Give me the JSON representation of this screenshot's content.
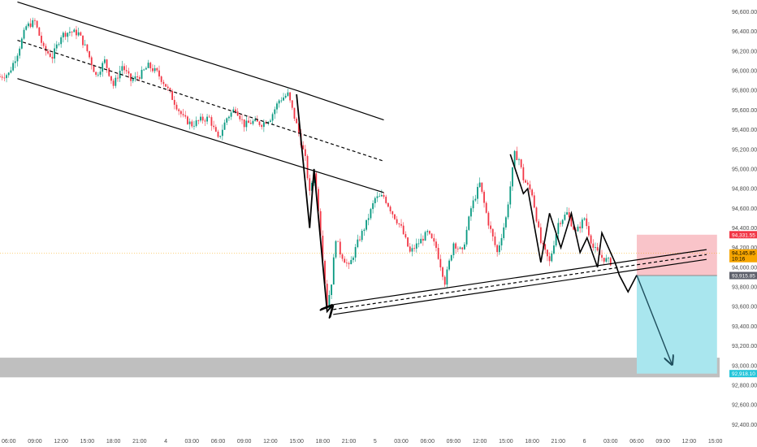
{
  "chart_data": {
    "type": "candlestick",
    "title": "",
    "xlabel": "",
    "ylabel": "",
    "grid": false,
    "ylim": [
      92320,
      96720
    ],
    "xlim_hours": [
      -1,
      81.5
    ],
    "y_ticks": [
      {
        "value": 96600,
        "label": "96,600.00"
      },
      {
        "value": 96400,
        "label": "96,400.00"
      },
      {
        "value": 96200,
        "label": "96,200.00"
      },
      {
        "value": 96000,
        "label": "96,000.00"
      },
      {
        "value": 95800,
        "label": "95,800.00"
      },
      {
        "value": 95600,
        "label": "95,600.00"
      },
      {
        "value": 95400,
        "label": "95,400.00"
      },
      {
        "value": 95200,
        "label": "95,200.00"
      },
      {
        "value": 95000,
        "label": "95,000.00"
      },
      {
        "value": 94800,
        "label": "94,800.00"
      },
      {
        "value": 94600,
        "label": "94,600.00"
      },
      {
        "value": 94400,
        "label": "94,400.00"
      },
      {
        "value": 94200,
        "label": "94,200.00"
      },
      {
        "value": 94000,
        "label": "94,000.00"
      },
      {
        "value": 93800,
        "label": "93,800.00"
      },
      {
        "value": 93600,
        "label": "93,600.00"
      },
      {
        "value": 93400,
        "label": "93,400.00"
      },
      {
        "value": 93200,
        "label": "93,200.00"
      },
      {
        "value": 93000,
        "label": "93,000.00"
      },
      {
        "value": 92800,
        "label": "92,800.00"
      },
      {
        "value": 92600,
        "label": "92,600.00"
      },
      {
        "value": 92400,
        "label": "92,400.00"
      }
    ],
    "x_ticks": [
      {
        "h": 0,
        "label": "06:00"
      },
      {
        "h": 3,
        "label": "09:00"
      },
      {
        "h": 6,
        "label": "12:00"
      },
      {
        "h": 9,
        "label": "15:00"
      },
      {
        "h": 12,
        "label": "18:00"
      },
      {
        "h": 15,
        "label": "21:00"
      },
      {
        "h": 18,
        "label": "4"
      },
      {
        "h": 21,
        "label": "03:00"
      },
      {
        "h": 24,
        "label": "06:00"
      },
      {
        "h": 27,
        "label": "09:00"
      },
      {
        "h": 30,
        "label": "12:00"
      },
      {
        "h": 33,
        "label": "15:00"
      },
      {
        "h": 36,
        "label": "18:00"
      },
      {
        "h": 39,
        "label": "21:00"
      },
      {
        "h": 42,
        "label": "5"
      },
      {
        "h": 45,
        "label": "03:00"
      },
      {
        "h": 48,
        "label": "06:00"
      },
      {
        "h": 51,
        "label": "09:00"
      },
      {
        "h": 54,
        "label": "12:00"
      },
      {
        "h": 57,
        "label": "15:00"
      },
      {
        "h": 60,
        "label": "18:00"
      },
      {
        "h": 63,
        "label": "21:00"
      },
      {
        "h": 66,
        "label": "6"
      },
      {
        "h": 69,
        "label": "03:00"
      },
      {
        "h": 72,
        "label": "06:00"
      },
      {
        "h": 75,
        "label": "09:00"
      },
      {
        "h": 78,
        "label": "12:00"
      },
      {
        "h": 81,
        "label": "15:00"
      }
    ],
    "price_path": [
      [
        -1,
        95940
      ],
      [
        0,
        95970
      ],
      [
        1,
        96180
      ],
      [
        2,
        96450
      ],
      [
        3,
        96500
      ],
      [
        4,
        96220
      ],
      [
        5,
        96140
      ],
      [
        6,
        96360
      ],
      [
        7,
        96400
      ],
      [
        8,
        96380
      ],
      [
        9,
        96200
      ],
      [
        10,
        95950
      ],
      [
        11,
        96100
      ],
      [
        12,
        95850
      ],
      [
        13,
        96050
      ],
      [
        14,
        95900
      ],
      [
        15,
        95950
      ],
      [
        16,
        96050
      ],
      [
        17,
        95980
      ],
      [
        18,
        95850
      ],
      [
        19,
        95680
      ],
      [
        20,
        95520
      ],
      [
        21,
        95450
      ],
      [
        22,
        95500
      ],
      [
        23,
        95520
      ],
      [
        24,
        95300
      ],
      [
        25,
        95520
      ],
      [
        26,
        95620
      ],
      [
        27,
        95450
      ],
      [
        28,
        95480
      ],
      [
        29,
        95460
      ],
      [
        30,
        95520
      ],
      [
        31,
        95700
      ],
      [
        32,
        95760
      ],
      [
        33,
        95450
      ],
      [
        34,
        95100
      ],
      [
        34.5,
        94750
      ],
      [
        35,
        94980
      ],
      [
        35.5,
        94600
      ],
      [
        36,
        94100
      ],
      [
        36.5,
        93600
      ],
      [
        37,
        93850
      ],
      [
        37.5,
        94300
      ],
      [
        38,
        94150
      ],
      [
        39,
        94000
      ],
      [
        40,
        94250
      ],
      [
        41,
        94450
      ],
      [
        42,
        94700
      ],
      [
        43,
        94720
      ],
      [
        44,
        94550
      ],
      [
        45,
        94400
      ],
      [
        46,
        94150
      ],
      [
        47,
        94250
      ],
      [
        48,
        94350
      ],
      [
        49,
        94200
      ],
      [
        50,
        93850
      ],
      [
        51,
        94250
      ],
      [
        52,
        94150
      ],
      [
        53,
        94600
      ],
      [
        54,
        94850
      ],
      [
        55,
        94450
      ],
      [
        56,
        94150
      ],
      [
        57,
        94500
      ],
      [
        58,
        95150
      ],
      [
        58.5,
        95100
      ],
      [
        59,
        94900
      ],
      [
        60,
        94750
      ],
      [
        61,
        94250
      ],
      [
        62,
        94050
      ],
      [
        63,
        94450
      ],
      [
        64,
        94550
      ],
      [
        65,
        94350
      ],
      [
        66,
        94500
      ],
      [
        67,
        94200
      ],
      [
        68,
        94100
      ],
      [
        69,
        94050
      ]
    ],
    "trendlines": [
      {
        "style": "solid",
        "points": [
          [
            1,
            96700
          ],
          [
            33,
            95800
          ],
          [
            43,
            95500
          ]
        ]
      },
      {
        "style": "dashed",
        "points": [
          [
            1,
            96310
          ],
          [
            43,
            95080
          ]
        ]
      },
      {
        "style": "solid",
        "points": [
          [
            1,
            95920
          ],
          [
            43,
            94760
          ]
        ]
      },
      {
        "style": "solid",
        "points": [
          [
            37.2,
            93620
          ],
          [
            80,
            94180
          ]
        ]
      },
      {
        "style": "dashed",
        "points": [
          [
            37.2,
            93570
          ],
          [
            80,
            94130
          ]
        ]
      },
      {
        "style": "solid",
        "points": [
          [
            37.2,
            93520
          ],
          [
            80,
            94080
          ]
        ]
      }
    ],
    "wave_path": [
      [
        33,
        95760
      ],
      [
        34.5,
        94400
      ],
      [
        35,
        95000
      ],
      [
        36.5,
        93550
      ],
      [
        37,
        93600
      ]
    ],
    "wave_path_2": [
      [
        57.5,
        95150
      ],
      [
        59,
        94750
      ],
      [
        59.5,
        94800
      ],
      [
        61,
        94050
      ],
      [
        62,
        94550
      ],
      [
        63.3,
        94200
      ],
      [
        64.5,
        94550
      ],
      [
        65.5,
        94150
      ],
      [
        66.3,
        94300
      ],
      [
        67.5,
        94000
      ],
      [
        68,
        94350
      ],
      [
        69.5,
        94050
      ],
      [
        70,
        93920
      ],
      [
        71,
        93750
      ],
      [
        72,
        93920
      ]
    ],
    "projection_arrow": {
      "from": [
        72,
        93920
      ],
      "to": [
        76,
        93020
      ]
    },
    "short_position": {
      "h_start": 72,
      "h_end": 81.2,
      "entry": 93915.85,
      "stop": 94331.55,
      "target": 92918.1
    },
    "support_zone": {
      "low": 92880,
      "high": 93080
    },
    "current_price_line": 94145.85,
    "price_badges": [
      {
        "value": 94331.55,
        "label": "94,331.55",
        "color": "#f23645"
      },
      {
        "value": 94145.85,
        "label": "94,145.85",
        "sub": "10:16",
        "color": "#f7a600"
      },
      {
        "value": 93915.85,
        "label": "93,915.85",
        "color": "#5d606b"
      },
      {
        "value": 92918.1,
        "label": "92,918.10",
        "color": "#26c6da"
      }
    ],
    "colors": {
      "up": "#089981",
      "down": "#f23645",
      "stop_zone": "#f9c4c9",
      "target_zone": "#a9e6ee",
      "support_band": "#b8b8b8",
      "current_price": "#f7a600",
      "lines": "#000000",
      "arrow": "#1e4d5c"
    }
  }
}
